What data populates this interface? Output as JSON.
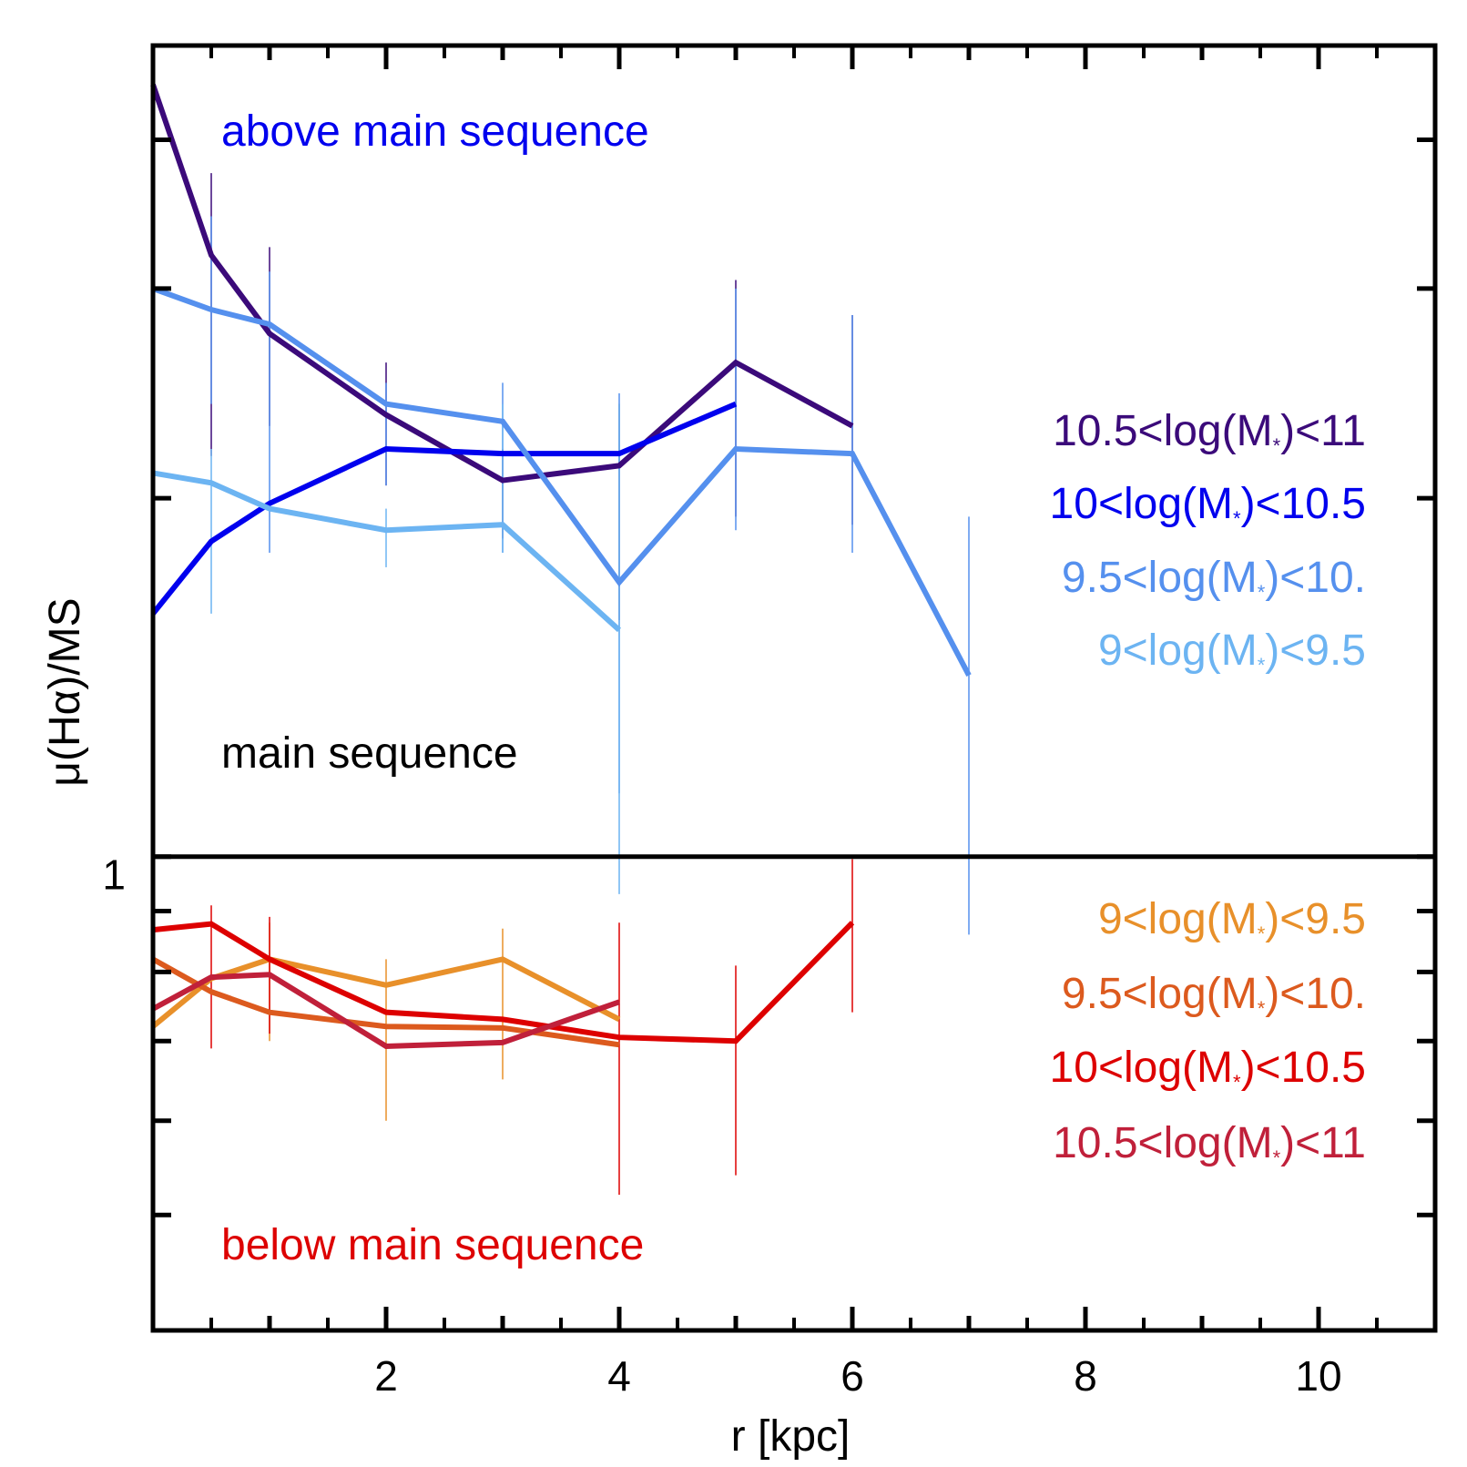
{
  "chart_data": {
    "type": "line",
    "xlabel": "r [kpc]",
    "ylabel": "μ(Hα)/MS",
    "xlim": [
      0,
      11
    ],
    "ylim": [
      0.4,
      4.8
    ],
    "yscale": "log",
    "xticks": [
      2,
      4,
      6,
      8,
      10
    ],
    "xtick_labels": [
      "2",
      "4",
      "6",
      "8",
      "10"
    ],
    "ytick_label": "1",
    "reference_line": 1.0,
    "annotations": {
      "above": "above main sequence",
      "main": "main sequence",
      "below": "below main sequence"
    },
    "colors": {
      "above_text": "#0000ee",
      "main_text": "#000000",
      "below_text": "#dd0000"
    },
    "series_above": [
      {
        "name": "10.5<log(M*)<11",
        "label_pre": "10.5<log(M",
        "label_post": ")<11",
        "color": "#3b0a7a",
        "x": [
          0,
          0.5,
          1,
          2,
          3,
          4,
          5,
          6
        ],
        "y": [
          4.45,
          3.2,
          2.75,
          2.35,
          2.07,
          2.13,
          2.6,
          2.3
        ],
        "err_x": [
          0.5,
          1,
          2,
          3,
          4,
          5,
          6
        ],
        "err_lo": [
          2.17,
          2.3,
          2.05,
          1.85,
          1.58,
          1.93,
          1.9
        ],
        "err_hi": [
          3.75,
          3.25,
          2.6,
          2.2,
          2.4,
          3.05,
          2.85
        ]
      },
      {
        "name": "10<log(M*)<10.5",
        "label_pre": "10<log(M",
        "label_post": ")<10.5",
        "color": "#0000ee",
        "x": [
          0,
          0.5,
          1,
          2,
          3,
          4,
          5
        ],
        "y": [
          1.6,
          1.84,
          1.98,
          2.2,
          2.18,
          2.18,
          2.4
        ],
        "err_x": [],
        "err_lo": [],
        "err_hi": []
      },
      {
        "name": "9.5<log(M*)<10.",
        "label_pre": "9.5<log(M",
        "label_post": ")<10.",
        "color": "#5590ee",
        "x": [
          0,
          0.5,
          1,
          2,
          3,
          4,
          5,
          6,
          7
        ],
        "y": [
          3.0,
          2.88,
          2.8,
          2.4,
          2.32,
          1.7,
          2.2,
          2.18,
          1.42
        ],
        "err_x": [
          0.5,
          1,
          2,
          3,
          4,
          5,
          6,
          7
        ],
        "err_lo": [
          2.4,
          1.8,
          2.05,
          1.8,
          1.13,
          1.88,
          1.8,
          0.86
        ],
        "err_hi": [
          3.45,
          3.1,
          2.5,
          2.5,
          2.45,
          3.0,
          2.85,
          1.93
        ]
      },
      {
        "name": "9<log(M*)<9.5",
        "label_pre": "9<log(M",
        "label_post": ")<9.5",
        "color": "#6cb4f2",
        "x": [
          0,
          0.5,
          1,
          2,
          3,
          4
        ],
        "y": [
          2.1,
          2.06,
          1.96,
          1.88,
          1.9,
          1.55
        ],
        "err_x": [
          0.5,
          2,
          3,
          4
        ],
        "err_lo": [
          1.6,
          1.75,
          1.8,
          0.93
        ],
        "err_hi": [
          2.2,
          1.96,
          2.4,
          2.4
        ]
      }
    ],
    "series_below": [
      {
        "name": "9<log(M*)<9.5",
        "label_pre": "9<log(M",
        "label_post": ")<9.5",
        "color": "#e8902a",
        "x": [
          0,
          0.5,
          1,
          2,
          3,
          4
        ],
        "y": [
          0.72,
          0.79,
          0.82,
          0.78,
          0.82,
          0.73
        ],
        "err_x": [
          1,
          2,
          3
        ],
        "err_lo": [
          0.7,
          0.6,
          0.65
        ],
        "err_hi": [
          0.88,
          0.82,
          0.87
        ]
      },
      {
        "name": "9.5<log(M*)<10.",
        "label_pre": "9.5<log(M",
        "label_post": ")<10.",
        "color": "#dc5a1e",
        "x": [
          0,
          0.5,
          1,
          2,
          3,
          4
        ],
        "y": [
          0.82,
          0.77,
          0.74,
          0.72,
          0.718,
          0.695
        ],
        "err_x": [],
        "err_lo": [],
        "err_hi": []
      },
      {
        "name": "10<log(M*)<10.5",
        "label_pre": "10<log(M",
        "label_post": ")<10.5",
        "color": "#dd0000",
        "x": [
          0,
          0.5,
          1,
          2,
          3,
          4,
          5,
          6
        ],
        "y": [
          0.868,
          0.878,
          0.82,
          0.74,
          0.73,
          0.705,
          0.7,
          0.88
        ],
        "err_x": [
          0.5,
          1,
          4,
          5,
          6
        ],
        "err_lo": [
          0.69,
          0.71,
          0.52,
          0.54,
          0.74
        ],
        "err_hi": [
          0.91,
          0.89,
          0.88,
          0.81,
          0.995
        ]
      },
      {
        "name": "10.5<log(M*)<11",
        "label_pre": "10.5<log(M",
        "label_post": ")<11",
        "color": "#c0203a",
        "x": [
          0,
          0.5,
          1,
          2,
          3,
          4
        ],
        "y": [
          0.745,
          0.792,
          0.796,
          0.693,
          0.698,
          0.755
        ],
        "err_x": [],
        "err_lo": [],
        "err_hi": []
      }
    ]
  }
}
